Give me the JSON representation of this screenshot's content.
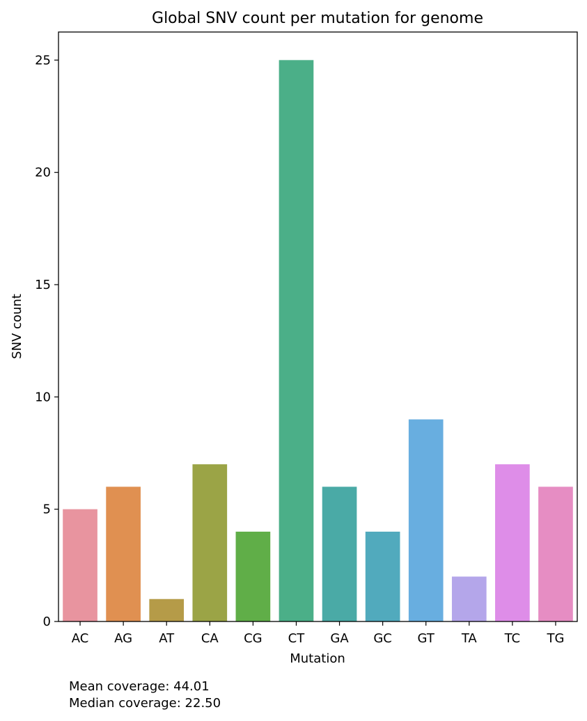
{
  "chart_data": {
    "type": "bar",
    "title": "Global SNV count per mutation for genome",
    "xlabel": "Mutation",
    "ylabel": "SNV count",
    "categories": [
      "AC",
      "AG",
      "AT",
      "CA",
      "CG",
      "CT",
      "GA",
      "GC",
      "GT",
      "TA",
      "TC",
      "TG"
    ],
    "values": [
      5,
      6,
      1,
      7,
      4,
      25,
      6,
      4,
      9,
      2,
      7,
      6
    ],
    "colors": [
      "#e8949f",
      "#e09051",
      "#b59b48",
      "#9ba446",
      "#60ae48",
      "#4baf88",
      "#4aaaa6",
      "#51aabd",
      "#68aee0",
      "#b4a6ea",
      "#de8de8",
      "#e68dc3"
    ],
    "ylim": [
      0,
      26.25
    ],
    "yticks": [
      0,
      5,
      10,
      15,
      20,
      25
    ],
    "grid": false
  },
  "footer": {
    "mean_coverage": "Mean coverage: 44.01",
    "median_coverage": "Median coverage: 22.50"
  }
}
